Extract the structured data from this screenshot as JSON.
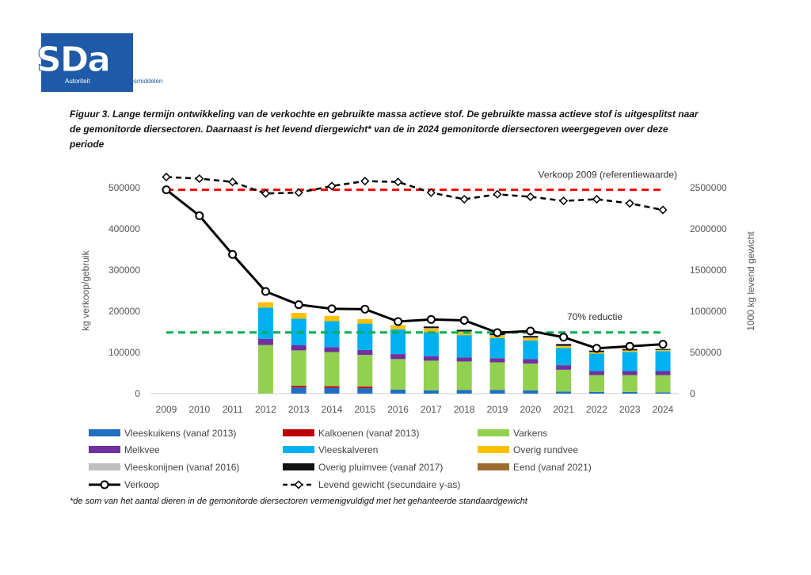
{
  "logo": {
    "text": "SDa",
    "line1": "Autoriteit",
    "line2": "Diergeneesmiddelen"
  },
  "caption": "Figuur 3. Lange termijn ontwikkeling van de verkochte en gebruikte massa actieve stof. De gebruikte massa actieve stof is uitgesplitst naar de gemonitorde diersectoren. Daarnaast is het levend diergewicht* van de in 2024 gemonitorde diersectoren weergegeven over deze periode",
  "footnote": "*de som van het aantal dieren in de gemonitorde diersectoren vermenigvuldigd met het gehanteerde standaardgewicht",
  "chart_data": {
    "type": "bar",
    "stacked": true,
    "categories": [
      "2009",
      "2010",
      "2011",
      "2012",
      "2013",
      "2014",
      "2015",
      "2016",
      "2017",
      "2018",
      "2019",
      "2020",
      "2021",
      "2022",
      "2023",
      "2024"
    ],
    "ylabel": "kg verkoop/gebruik",
    "y2label": "1000 kg levend gewicht",
    "ylim": [
      0,
      500000
    ],
    "y2lim": [
      0,
      2500000
    ],
    "yticks": [
      "0",
      "100000",
      "200000",
      "300000",
      "400000",
      "500000"
    ],
    "y2ticks": [
      "0",
      "500000",
      "1000000",
      "1500000",
      "2000000",
      "2500000"
    ],
    "grid": false,
    "legend_position": "bottom",
    "series": [
      {
        "name": "Vleeskuikens (vanaf 2013)",
        "color": "#1f6fc4",
        "values": [
          0,
          0,
          0,
          0,
          15000,
          14000,
          13000,
          10000,
          8000,
          9000,
          9000,
          8000,
          5000,
          4000,
          4000,
          3000
        ]
      },
      {
        "name": "Kalkoenen (vanaf 2013)",
        "color": "#c00000",
        "values": [
          0,
          0,
          0,
          0,
          4000,
          4000,
          4000,
          0,
          0,
          0,
          0,
          0,
          0,
          0,
          0,
          0
        ]
      },
      {
        "name": "Varkens",
        "color": "#92d050",
        "values": [
          0,
          0,
          0,
          118000,
          86000,
          83000,
          77000,
          74000,
          72000,
          69000,
          67000,
          65000,
          53000,
          41000,
          41000,
          42000
        ]
      },
      {
        "name": "Melkvee",
        "color": "#7030a0",
        "values": [
          0,
          0,
          0,
          15000,
          13000,
          12000,
          12000,
          12000,
          11000,
          10000,
          10000,
          11000,
          11000,
          10000,
          10000,
          10000
        ]
      },
      {
        "name": "Vleeskalveren",
        "color": "#00b0f0",
        "values": [
          0,
          0,
          0,
          76000,
          64000,
          63000,
          64000,
          60000,
          58000,
          54000,
          49000,
          45000,
          42000,
          42000,
          46000,
          48000
        ]
      },
      {
        "name": "Overig rundvee",
        "color": "#ffc000",
        "values": [
          0,
          0,
          0,
          13000,
          14000,
          13000,
          11000,
          10000,
          9000,
          8000,
          6000,
          6000,
          4000,
          3000,
          3000,
          2000
        ]
      },
      {
        "name": "Vleeskonijnen (vanaf 2016)",
        "color": "#bfbfbf",
        "values": [
          0,
          0,
          0,
          0,
          0,
          0,
          0,
          1000,
          1000,
          1000,
          1000,
          1000,
          1000,
          1000,
          1000,
          1000
        ]
      },
      {
        "name": "Overig pluimvee (vanaf 2017)",
        "color": "#111111",
        "values": [
          0,
          0,
          0,
          0,
          0,
          0,
          0,
          0,
          4000,
          4000,
          4000,
          4000,
          4000,
          3000,
          3000,
          2000
        ]
      },
      {
        "name": "Eend (vanaf 2021)",
        "color": "#9c6b30",
        "values": [
          0,
          0,
          0,
          0,
          0,
          0,
          0,
          0,
          0,
          0,
          0,
          0,
          1000,
          1000,
          1000,
          1000
        ]
      }
    ],
    "lines": [
      {
        "name": "Verkoop",
        "axis": "primary",
        "values": [
          495000,
          432000,
          338000,
          248000,
          216000,
          206000,
          205000,
          175000,
          180000,
          178000,
          148000,
          152000,
          137000,
          110000,
          115000,
          120000
        ]
      },
      {
        "name": "Levend gewicht (secundaire y-as)",
        "axis": "secondary",
        "values": [
          2630000,
          2610000,
          2570000,
          2430000,
          2440000,
          2520000,
          2580000,
          2570000,
          2440000,
          2360000,
          2420000,
          2390000,
          2340000,
          2360000,
          2310000,
          2230000
        ]
      }
    ],
    "reference_lines": [
      {
        "label": "Verkoop 2009 (referentiewaarde)",
        "value": 495000,
        "color": "#ff0000"
      },
      {
        "label": "70% reductie",
        "value": 148500,
        "color": "#00b050"
      }
    ]
  }
}
